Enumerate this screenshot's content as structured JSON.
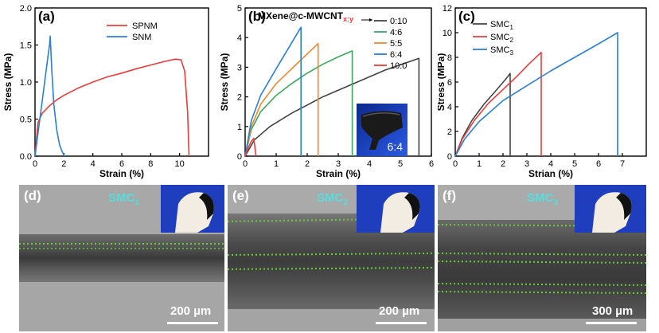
{
  "colors": {
    "black": "#000000",
    "red": "#ee3b3b",
    "blue": "#2a7fd6",
    "green": "#3aa85a",
    "orange": "#f2872a",
    "gray": "#444444",
    "smc_label": "#56dede",
    "dotted_green": "#66cc33"
  },
  "chart_data": [
    {
      "type": "line",
      "panel_label": "(a)",
      "xlabel": "Strain (%)",
      "ylabel": "Stress (MPa)",
      "xlim": [
        0,
        12
      ],
      "ylim": [
        0,
        2.0
      ],
      "xticks": [
        "0",
        "2",
        "4",
        "6",
        "8",
        "10"
      ],
      "yticks": [
        "0.0",
        "0.5",
        "1.0",
        "1.5",
        "2.0"
      ],
      "legend": [
        "SPNM",
        "SNM"
      ],
      "series": [
        {
          "name": "SPNM",
          "color": "#ee3b3b",
          "x": [
            0,
            0.2,
            0.5,
            1,
            1.5,
            2,
            3,
            4,
            5,
            6,
            7,
            8,
            9,
            9.7,
            10.1,
            10.35,
            10.55,
            10.65
          ],
          "y": [
            0,
            0.45,
            0.58,
            0.68,
            0.76,
            0.82,
            0.92,
            1.0,
            1.07,
            1.12,
            1.18,
            1.23,
            1.28,
            1.31,
            1.3,
            1.15,
            0.6,
            0
          ]
        },
        {
          "name": "SNM",
          "color": "#2a7fd6",
          "x": [
            0,
            0.2,
            0.4,
            0.6,
            0.8,
            1.0,
            1.05,
            1.15,
            1.3,
            1.5,
            1.7,
            1.9,
            2.05
          ],
          "y": [
            0,
            0.3,
            0.6,
            0.9,
            1.2,
            1.5,
            1.62,
            1.2,
            0.7,
            0.35,
            0.15,
            0.05,
            0
          ]
        }
      ]
    },
    {
      "type": "line",
      "panel_label": "(b)",
      "title_main": "MXene@c-MWCNT",
      "title_sub": "x:y",
      "xlabel": "Strain (%)",
      "ylabel": "Stress (MPa)",
      "xlim": [
        0,
        6
      ],
      "ylim": [
        0,
        5
      ],
      "xticks": [
        "0",
        "1",
        "2",
        "3",
        "4",
        "5",
        "6"
      ],
      "yticks": [
        "0",
        "1",
        "2",
        "3",
        "4",
        "5"
      ],
      "legend": [
        "0:10",
        "4:6",
        "5:5",
        "6:4",
        "10:0"
      ],
      "inset_label": "6:4",
      "series": [
        {
          "name": "0:10",
          "color": "#444444",
          "x": [
            0,
            0.3,
            0.8,
            1.5,
            2.5,
            3.5,
            4.5,
            5.6,
            5.6
          ],
          "y": [
            0,
            0.55,
            1.0,
            1.45,
            2.0,
            2.45,
            2.9,
            3.3,
            0
          ]
        },
        {
          "name": "4:6",
          "color": "#3aa85a",
          "x": [
            0,
            0.2,
            0.5,
            1.0,
            1.5,
            2.0,
            2.5,
            3.0,
            3.45,
            3.45
          ],
          "y": [
            0,
            0.9,
            1.5,
            2.05,
            2.45,
            2.8,
            3.1,
            3.35,
            3.55,
            0
          ]
        },
        {
          "name": "5:5",
          "color": "#f2872a",
          "x": [
            0,
            0.2,
            0.5,
            1.0,
            1.5,
            2.0,
            2.35,
            2.35
          ],
          "y": [
            0,
            1.0,
            1.75,
            2.45,
            2.95,
            3.45,
            3.8,
            0
          ]
        },
        {
          "name": "6:4",
          "color": "#2a7fd6",
          "x": [
            0,
            0.2,
            0.5,
            1.0,
            1.4,
            1.8,
            1.8
          ],
          "y": [
            0,
            1.2,
            2.05,
            2.95,
            3.65,
            4.35,
            0
          ]
        },
        {
          "name": "10:0",
          "color": "#ee3b3b",
          "x": [
            0,
            0.1,
            0.2,
            0.28,
            0.35
          ],
          "y": [
            0,
            0.28,
            0.5,
            0.6,
            0
          ]
        }
      ]
    },
    {
      "type": "line",
      "panel_label": "(c)",
      "xlabel": "Strian (%)",
      "ylabel": "Stress (MPa)",
      "xlim": [
        0,
        8
      ],
      "ylim": [
        0,
        12
      ],
      "xticks": [
        "0",
        "1",
        "2",
        "3",
        "4",
        "5",
        "6",
        "7"
      ],
      "yticks": [
        "0",
        "2",
        "4",
        "6",
        "8",
        "10",
        "12"
      ],
      "legend": [
        {
          "main": "SMC",
          "sub": "1"
        },
        {
          "main": "SMC",
          "sub": "2"
        },
        {
          "main": "SMC",
          "sub": "3"
        }
      ],
      "series": [
        {
          "name": "SMC1",
          "color": "#444444",
          "x": [
            0,
            0.3,
            0.7,
            1.2,
            1.7,
            2.1,
            2.3,
            2.3
          ],
          "y": [
            0,
            1.5,
            2.9,
            4.2,
            5.3,
            6.2,
            6.7,
            0
          ]
        },
        {
          "name": "SMC2",
          "color": "#ee3b3b",
          "x": [
            0,
            0.3,
            0.8,
            1.4,
            2.0,
            2.6,
            3.1,
            3.6,
            3.6
          ],
          "y": [
            0,
            1.4,
            2.9,
            4.3,
            5.4,
            6.5,
            7.5,
            8.4,
            0
          ]
        },
        {
          "name": "SMC3",
          "color": "#2a7fd6",
          "x": [
            0,
            0.4,
            1.0,
            2.0,
            3.0,
            4.0,
            5.0,
            6.0,
            6.8,
            6.8
          ],
          "y": [
            0,
            1.4,
            2.8,
            4.5,
            5.7,
            6.9,
            8.0,
            9.1,
            10.0,
            0
          ]
        }
      ]
    }
  ],
  "sem_panels": [
    {
      "label": "(d)",
      "smc_main": "SMC",
      "smc_sub": "1",
      "scale": "200 µm"
    },
    {
      "label": "(e)",
      "smc_main": "SMC",
      "smc_sub": "2",
      "scale": "200 µm"
    },
    {
      "label": "(f)",
      "smc_main": "SMC",
      "smc_sub": "3",
      "scale": "300 µm"
    }
  ]
}
